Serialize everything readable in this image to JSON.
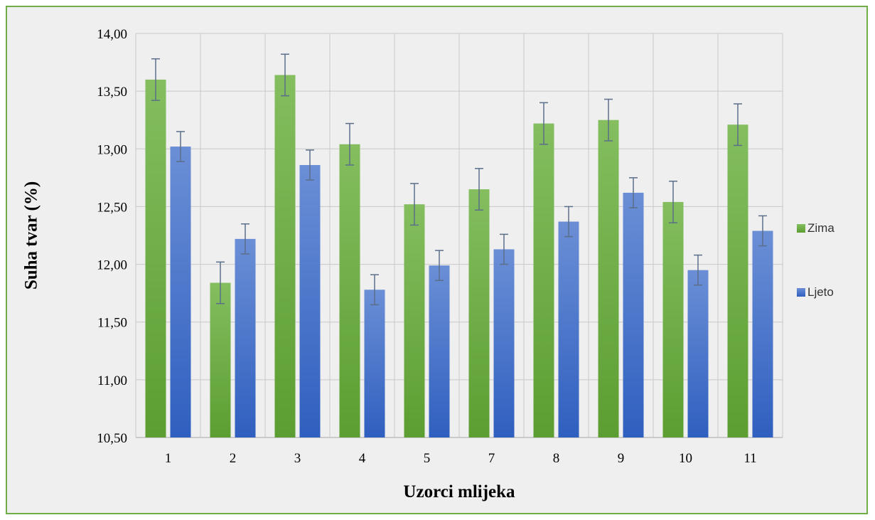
{
  "chart_data": {
    "type": "bar",
    "xlabel": "Uzorci mlijeka",
    "ylabel": "Suha tvar (%)",
    "ylim": [
      10.5,
      14.0
    ],
    "ytick_step": 0.5,
    "ytick_labels": [
      "10,50",
      "11,00",
      "11,50",
      "12,00",
      "12,50",
      "13,00",
      "13,50",
      "14,00"
    ],
    "categories": [
      "1",
      "2",
      "3",
      "4",
      "5",
      "7",
      "8",
      "9",
      "10",
      "11"
    ],
    "grid": true,
    "legend_position": "right",
    "series": [
      {
        "name": "Zima",
        "color_top": "#84be5f",
        "color_bottom": "#5c9e31",
        "values": [
          13.6,
          11.84,
          13.64,
          13.04,
          12.52,
          12.65,
          13.22,
          13.25,
          12.54,
          13.21
        ],
        "errors": [
          0.18,
          0.18,
          0.18,
          0.18,
          0.18,
          0.18,
          0.18,
          0.18,
          0.18,
          0.18
        ]
      },
      {
        "name": "Ljeto",
        "color_top": "#6b8fd6",
        "color_bottom": "#2f5fbf",
        "values": [
          13.02,
          12.22,
          12.86,
          11.78,
          11.99,
          12.13,
          12.37,
          12.62,
          11.95,
          12.29
        ],
        "errors": [
          0.13,
          0.13,
          0.13,
          0.13,
          0.13,
          0.13,
          0.13,
          0.13,
          0.13,
          0.13
        ]
      }
    ],
    "error_bar_color": "#5b6f8a",
    "grid_color": "#c8c8c8",
    "axis_color": "#bfbfbf"
  }
}
